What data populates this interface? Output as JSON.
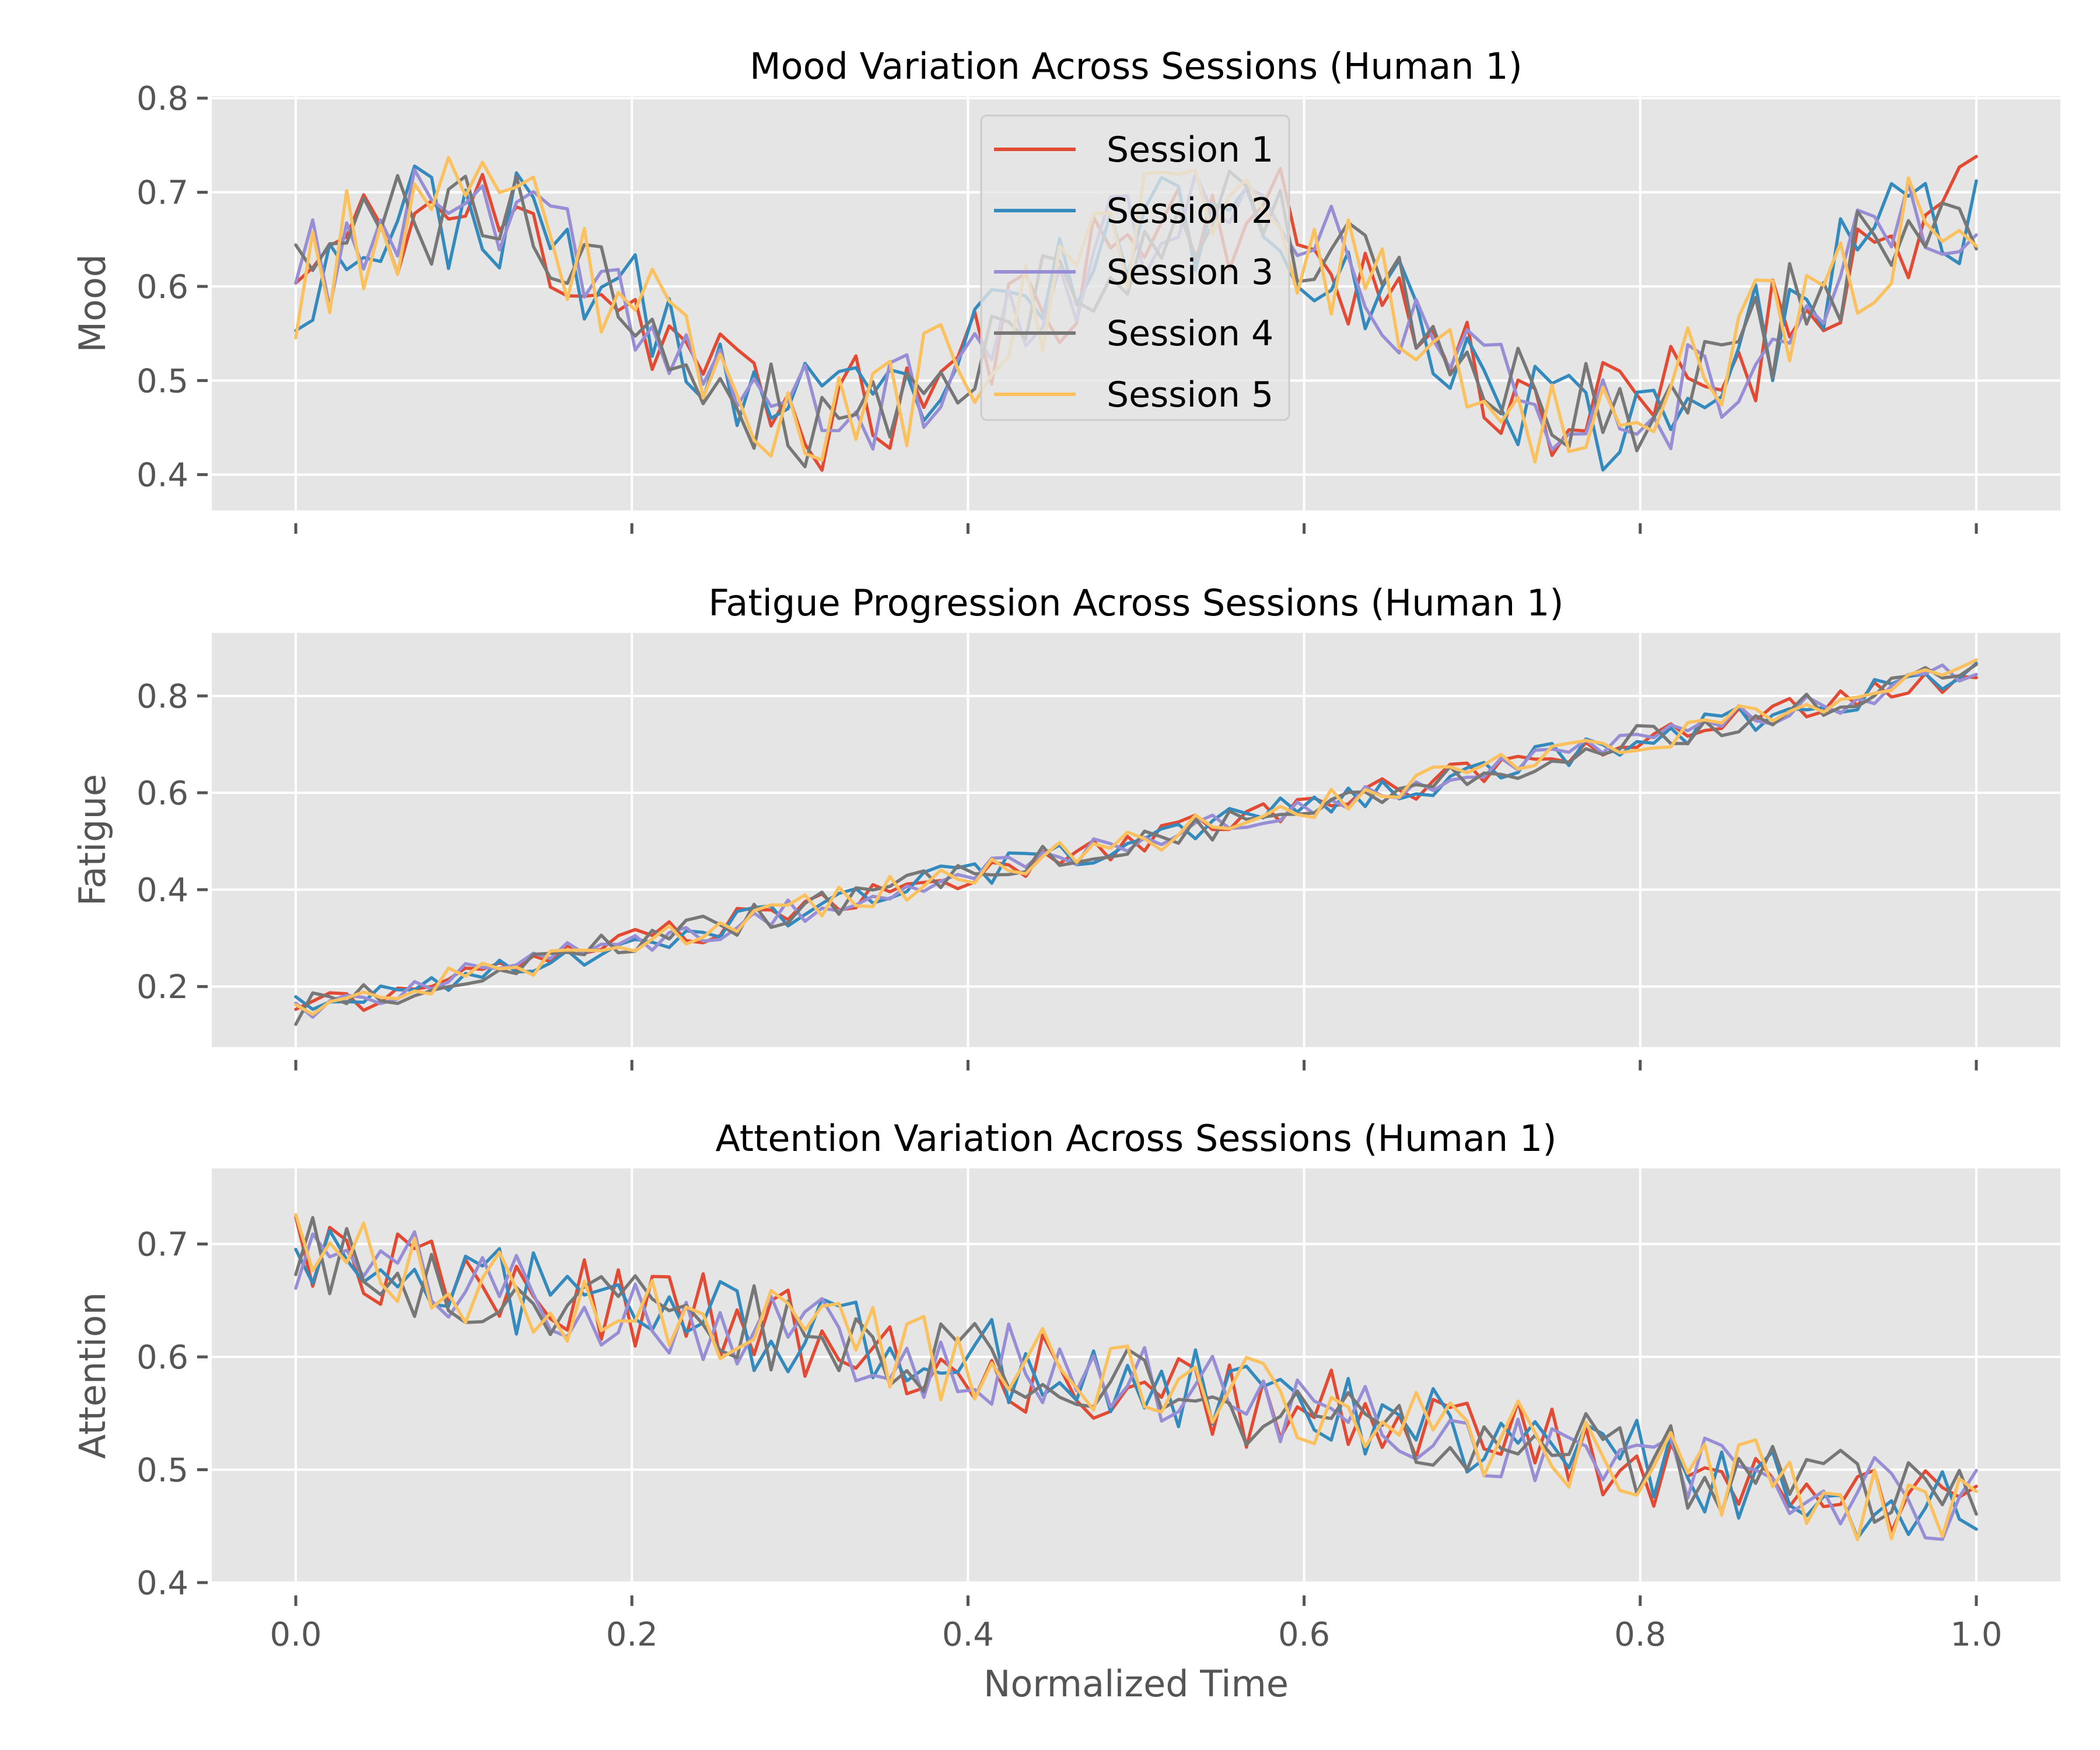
{
  "chart_data": [
    {
      "type": "line",
      "title": "Mood Variation Across Sessions (Human 1)",
      "xlabel": "",
      "ylabel": "Mood",
      "xlim": [
        -0.05,
        1.05
      ],
      "ylim": [
        0.362,
        0.802
      ],
      "yticks": [
        "0.4",
        "0.5",
        "0.6",
        "0.7",
        "0.8"
      ],
      "xticks": [],
      "grid": true,
      "legend": "upper-center",
      "series": [
        {
          "name": "Session 1",
          "color": "#E24A33",
          "trend": "mood",
          "seed": 11,
          "noise": 0.065
        },
        {
          "name": "Session 2",
          "color": "#348ABD",
          "trend": "mood",
          "seed": 23,
          "noise": 0.06
        },
        {
          "name": "Session 3",
          "color": "#988ED5",
          "trend": "mood",
          "seed": 37,
          "noise": 0.055
        },
        {
          "name": "Session 4",
          "color": "#777777",
          "trend": "mood",
          "seed": 41,
          "noise": 0.06
        },
        {
          "name": "Session 5",
          "color": "#FBC15E",
          "trend": "mood",
          "seed": 53,
          "noise": 0.065
        }
      ]
    },
    {
      "type": "line",
      "title": "Fatigue Progression Across Sessions (Human 1)",
      "xlabel": "",
      "ylabel": "Fatigue",
      "xlim": [
        -0.05,
        1.05
      ],
      "ylim": [
        0.075,
        0.93
      ],
      "yticks": [
        "0.2",
        "0.4",
        "0.6",
        "0.8"
      ],
      "xticks": [],
      "grid": true,
      "series": [
        {
          "name": "Session 1",
          "color": "#E24A33",
          "trend": "fatigue",
          "seed": 61,
          "noise": 0.03
        },
        {
          "name": "Session 2",
          "color": "#348ABD",
          "trend": "fatigue",
          "seed": 67,
          "noise": 0.03
        },
        {
          "name": "Session 3",
          "color": "#988ED5",
          "trend": "fatigue",
          "seed": 71,
          "noise": 0.03
        },
        {
          "name": "Session 4",
          "color": "#777777",
          "trend": "fatigue",
          "seed": 79,
          "noise": 0.03
        },
        {
          "name": "Session 5",
          "color": "#FBC15E",
          "trend": "fatigue",
          "seed": 83,
          "noise": 0.03
        }
      ]
    },
    {
      "type": "line",
      "title": "Attention Variation Across Sessions (Human 1)",
      "xlabel": "Normalized Time",
      "ylabel": "Attention",
      "xlim": [
        -0.05,
        1.05
      ],
      "ylim": [
        0.4,
        0.767
      ],
      "yticks": [
        "0.4",
        "0.5",
        "0.6",
        "0.7"
      ],
      "xticks": [
        "0.0",
        "0.2",
        "0.4",
        "0.6",
        "0.8",
        "1.0"
      ],
      "grid": true,
      "series": [
        {
          "name": "Session 1",
          "color": "#E24A33",
          "trend": "attention",
          "seed": 89,
          "noise": 0.04
        },
        {
          "name": "Session 2",
          "color": "#348ABD",
          "trend": "attention",
          "seed": 97,
          "noise": 0.04
        },
        {
          "name": "Session 3",
          "color": "#988ED5",
          "trend": "attention",
          "seed": 101,
          "noise": 0.04
        },
        {
          "name": "Session 4",
          "color": "#777777",
          "trend": "attention",
          "seed": 103,
          "noise": 0.04
        },
        {
          "name": "Session 5",
          "color": "#FBC15E",
          "trend": "attention",
          "seed": 107,
          "noise": 0.04
        }
      ]
    }
  ]
}
